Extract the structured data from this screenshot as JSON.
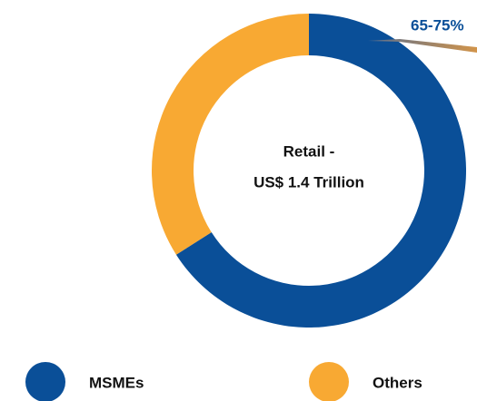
{
  "chart_data": {
    "type": "donut",
    "title": "Retail -",
    "subtitle": "US$ 1.4 Trillion",
    "annotation": "65-75%",
    "categories": [
      "MSMEs",
      "Others"
    ],
    "values": [
      66,
      34
    ],
    "colors": [
      "#0a4f98",
      "#f8a933"
    ],
    "legend": "bottom"
  }
}
